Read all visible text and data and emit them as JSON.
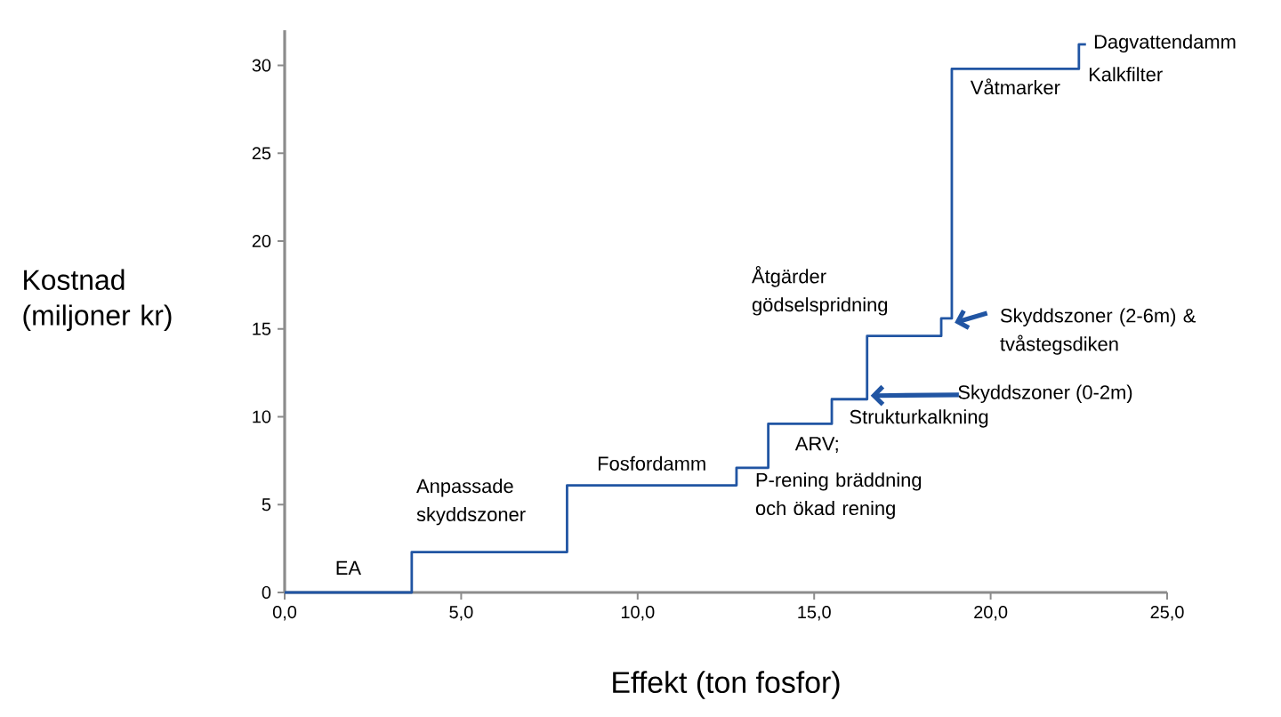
{
  "chart_data": {
    "type": "step",
    "xlabel": "Effekt (ton fosfor)",
    "ylabel": "Kostnad (miljoner kr)",
    "color": "#2155a3",
    "x": [
      0,
      3.6,
      8.0,
      12.8,
      13.7,
      15.5,
      16.5,
      18.6,
      18.9,
      22.5,
      22.7
    ],
    "values": [
      0,
      2.3,
      6.1,
      7.1,
      9.6,
      11.0,
      14.6,
      15.6,
      29.8,
      31.2,
      31.2
    ],
    "xlim": [
      0,
      25
    ],
    "ylim": [
      0,
      32
    ],
    "xticks": [
      {
        "value": 0,
        "label": "0,0"
      },
      {
        "value": 5,
        "label": "5,0"
      },
      {
        "value": 10,
        "label": "10,0"
      },
      {
        "value": 15,
        "label": "15,0"
      },
      {
        "value": 20,
        "label": "20,0"
      },
      {
        "value": 25,
        "label": "25,0"
      }
    ],
    "yticks": [
      0,
      5,
      10,
      15,
      20,
      25,
      30
    ],
    "grid": false,
    "annotations": [
      {
        "text": "EA",
        "x": 1.8,
        "y": 0
      },
      {
        "text": "Anpassade skyddszoner",
        "x": 5.8,
        "y": 2.3
      },
      {
        "text": "Fosfordamm",
        "x": 10.4,
        "y": 6.1
      },
      {
        "text": "ARV;",
        "x": 14.5,
        "y": 9.6
      },
      {
        "text": "P-rening bräddning och ökad rening",
        "x": 13.2,
        "y": 7.1
      },
      {
        "text": "Strukturkalkning",
        "x": 16.0,
        "y": 11.0
      },
      "Skyddszoner (0-2m)",
      {
        "text": "Skyddszoner (2-6m) & tvåstegsdiken",
        "x": 18.9,
        "y": 15.6
      },
      {
        "text": "Åtgärder gödselspridning",
        "x": 17.5,
        "y": 14.6
      },
      {
        "text": "Våtmarker",
        "x": 20.7,
        "y": 29.8
      },
      {
        "text": "Kalkfilter",
        "x": 22.5,
        "y": 29.8
      },
      {
        "text": "Dagvattendamm",
        "x": 22.7,
        "y": 31.2
      }
    ]
  }
}
